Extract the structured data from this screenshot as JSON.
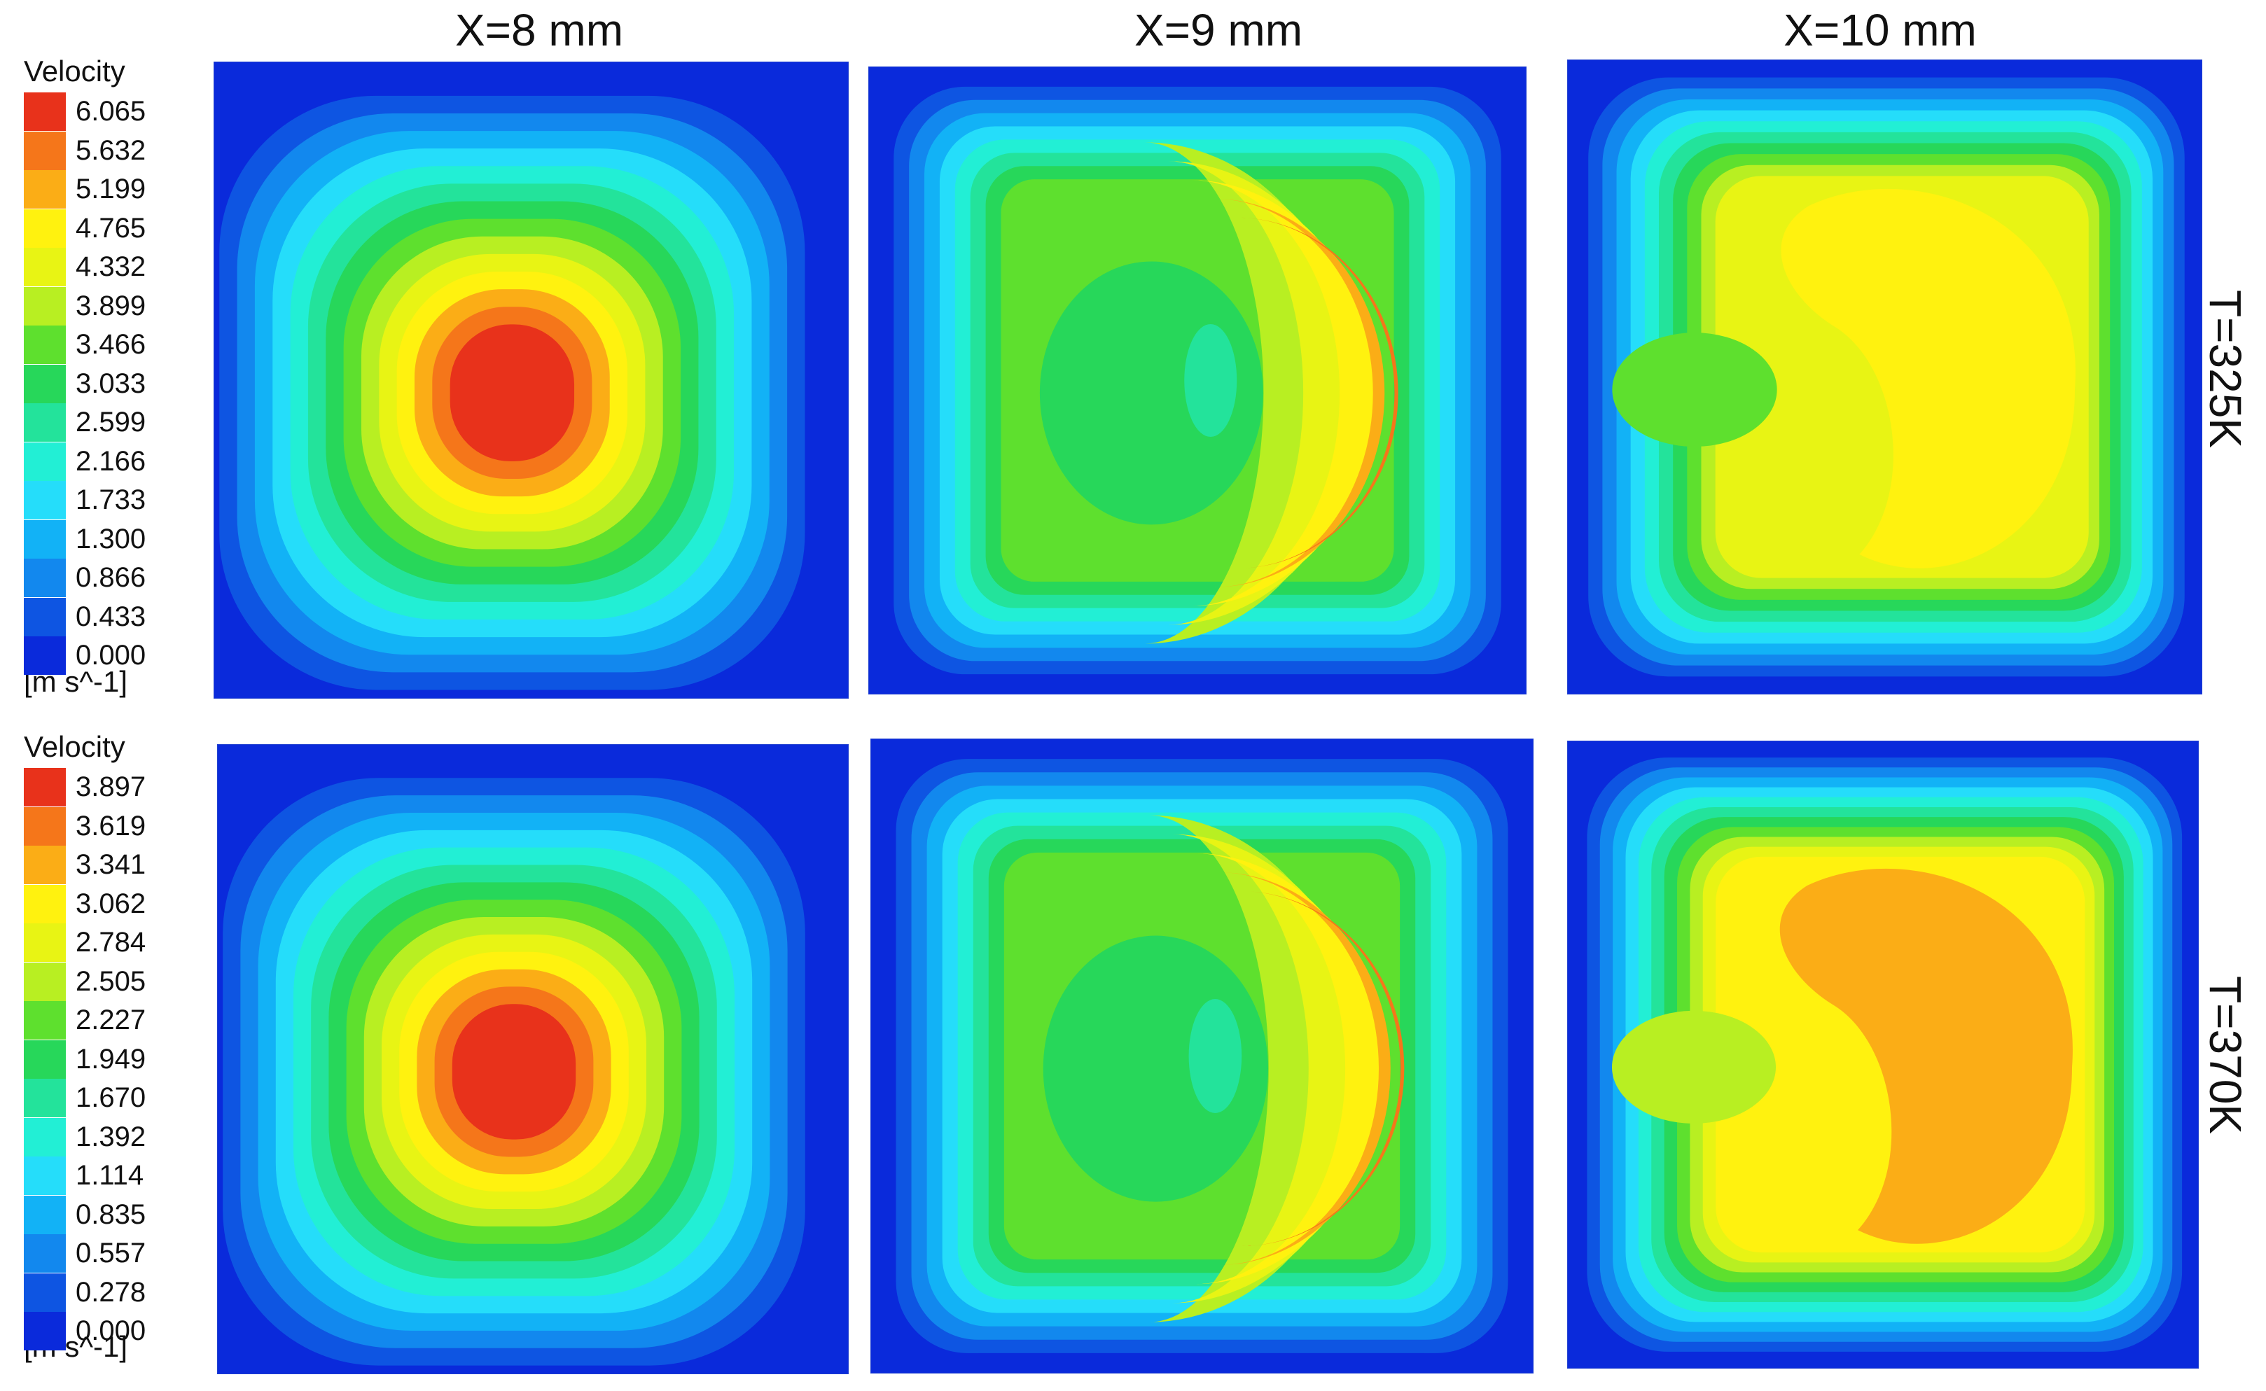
{
  "columns": [
    "X=8 mm",
    "X=9 mm",
    "X=10 mm"
  ],
  "rows": [
    "T=325K",
    "T=370K"
  ],
  "legends": [
    {
      "title": "Velocity",
      "unit": "[m s^-1]",
      "ticks": [
        "6.065",
        "5.632",
        "5.199",
        "4.765",
        "4.332",
        "3.899",
        "3.466",
        "3.033",
        "2.599",
        "2.166",
        "1.733",
        "1.300",
        "0.866",
        "0.433",
        "0.000"
      ]
    },
    {
      "title": "Velocity",
      "unit": "[m s^-1]",
      "ticks": [
        "3.897",
        "3.619",
        "3.341",
        "3.062",
        "2.784",
        "2.505",
        "2.227",
        "1.949",
        "1.670",
        "1.392",
        "1.114",
        "0.835",
        "0.557",
        "0.278",
        "0.000"
      ]
    }
  ],
  "colormap": [
    "#e8321b",
    "#f5761a",
    "#fbad16",
    "#fff20f",
    "#e8f414",
    "#b8ef22",
    "#5ee02e",
    "#27d75a",
    "#23e39b",
    "#22efd5",
    "#25ddfa",
    "#12b2f6",
    "#1288ee",
    "#0e55e2",
    "#0a2adb"
  ],
  "panels": [
    {
      "row": 0,
      "col": 0,
      "pattern": "centered-core",
      "core_level": 0,
      "peak": 6.065
    },
    {
      "row": 0,
      "col": 1,
      "pattern": "crescent-right",
      "core_level": 1,
      "peak": 6.065
    },
    {
      "row": 0,
      "col": 2,
      "pattern": "broad-plateau",
      "core_level": 3,
      "peak": 6.065
    },
    {
      "row": 1,
      "col": 0,
      "pattern": "centered-core",
      "core_level": 0,
      "peak": 3.897
    },
    {
      "row": 1,
      "col": 1,
      "pattern": "crescent-right",
      "core_level": 1,
      "peak": 3.897
    },
    {
      "row": 1,
      "col": 2,
      "pattern": "broad-plateau",
      "core_level": 2,
      "peak": 3.897
    }
  ]
}
